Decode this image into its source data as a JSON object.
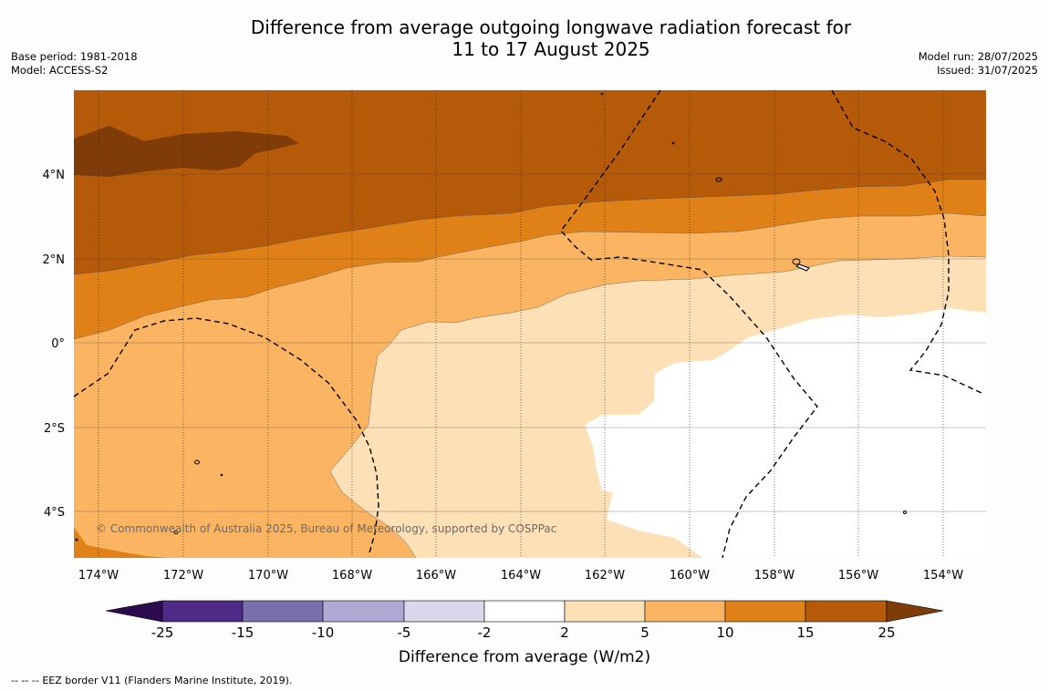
{
  "header": {
    "title_line1": "Difference from average outgoing longwave radiation forecast for",
    "title_line2": "11 to 17 August 2025",
    "base_period": "Base period: 1981-2018",
    "model": "Model: ACCESS-S2",
    "model_run": "Model run: 28/07/2025",
    "issued": "Issued: 31/07/2025"
  },
  "map": {
    "lon_labels": [
      "174°W",
      "172°W",
      "170°W",
      "168°W",
      "166°W",
      "164°W",
      "162°W",
      "160°W",
      "158°W",
      "156°W",
      "154°W"
    ],
    "lat_labels": [
      "4°N",
      "2°N",
      "0°",
      "2°S",
      "4°S"
    ],
    "copyright": "© Commonwealth of Australia 2025, Bureau of Meteorology, supported by COSPPac"
  },
  "colorbar": {
    "ticks": [
      "-25",
      "-15",
      "-10",
      "-5",
      "-2",
      "2",
      "5",
      "10",
      "15",
      "25"
    ],
    "colors": [
      "#4f2a87",
      "#7b6fab",
      "#b1a8d4",
      "#d9d8ec",
      "#ffffff",
      "#fde0b6",
      "#fbb562",
      "#e08118",
      "#b55a08"
    ],
    "under_color": "#2d0a4e",
    "over_color": "#7f3b08",
    "label": "Difference from average (W/m2)"
  },
  "footer": {
    "legend_symbol": "-- -- --",
    "legend_text": "EEZ border V11 (Flanders Marine Institute, 2019)."
  }
}
